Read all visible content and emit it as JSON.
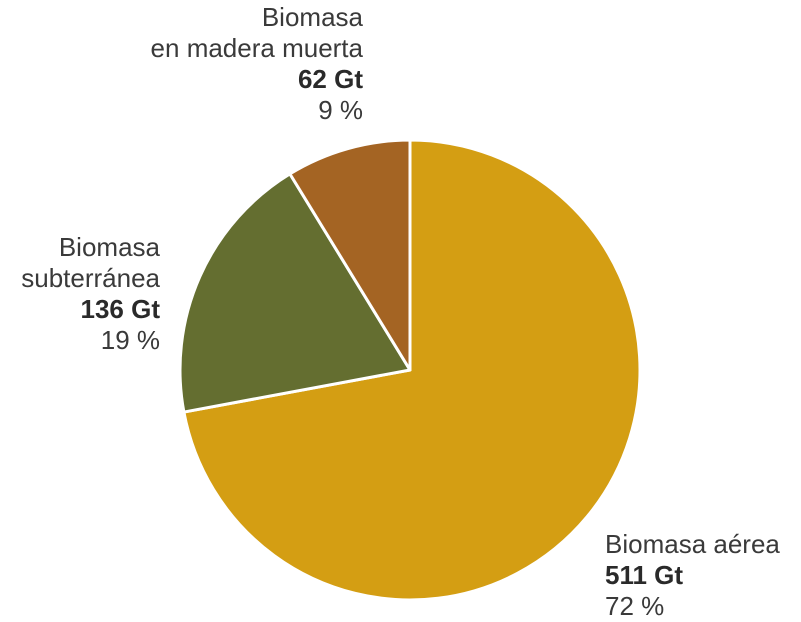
{
  "chart_data": {
    "type": "pie",
    "slices": [
      {
        "label": "Biomasa aérea",
        "value": 511,
        "unit": "Gt",
        "value_text": "511 Gt",
        "percent": 72,
        "percent_text": "72 %",
        "color": "#D49E13"
      },
      {
        "label": "Biomasa subterránea",
        "label_lines": [
          "Biomasa",
          "subterránea"
        ],
        "value": 136,
        "unit": "Gt",
        "value_text": "136 Gt",
        "percent": 19,
        "percent_text": "19 %",
        "color": "#646E30"
      },
      {
        "label": "Biomasa en madera muerta",
        "label_lines": [
          "Biomasa",
          "en madera muerta"
        ],
        "value": 62,
        "unit": "Gt",
        "value_text": "62 Gt",
        "percent": 9,
        "percent_text": "9 %",
        "color": "#A46423"
      }
    ],
    "start_angle_deg": 0,
    "direction": "clockwise"
  }
}
